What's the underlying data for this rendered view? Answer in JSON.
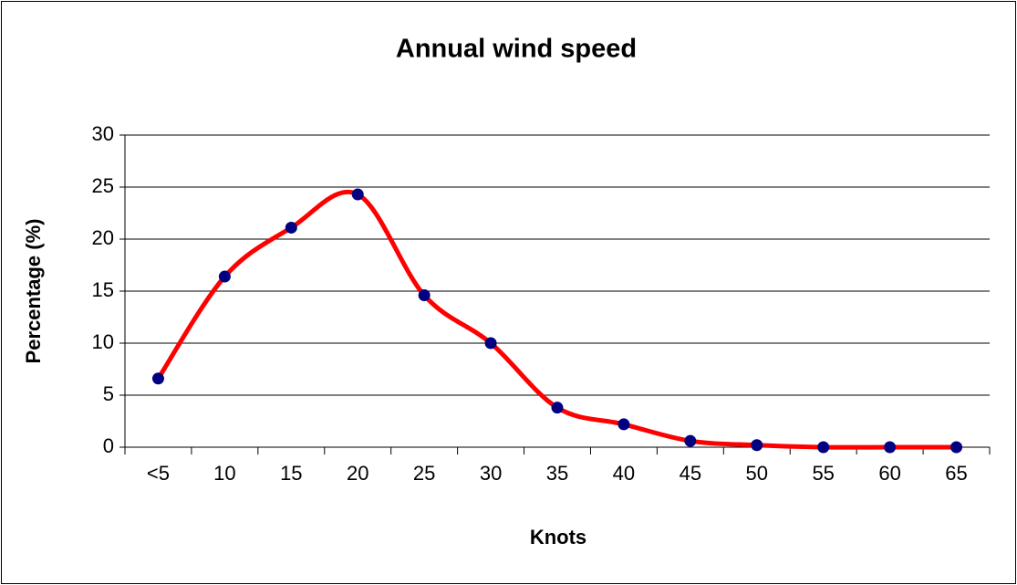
{
  "chart_data": {
    "type": "line",
    "title": "Annual wind speed",
    "x_label": "Knots",
    "y_label": "Percentage (%)",
    "categories": [
      "<5",
      "10",
      "15",
      "20",
      "25",
      "30",
      "35",
      "40",
      "45",
      "50",
      "55",
      "60",
      "65"
    ],
    "values": [
      6.6,
      16.4,
      21.1,
      24.3,
      14.6,
      10.0,
      3.8,
      2.2,
      0.6,
      0.2,
      0,
      0,
      0
    ],
    "color": "#ff0000",
    "marker_color": "#000080",
    "smooth": true,
    "ylim": [
      0,
      30
    ],
    "yticks": [
      0,
      5,
      10,
      15,
      20,
      25,
      30
    ],
    "grid": true
  }
}
